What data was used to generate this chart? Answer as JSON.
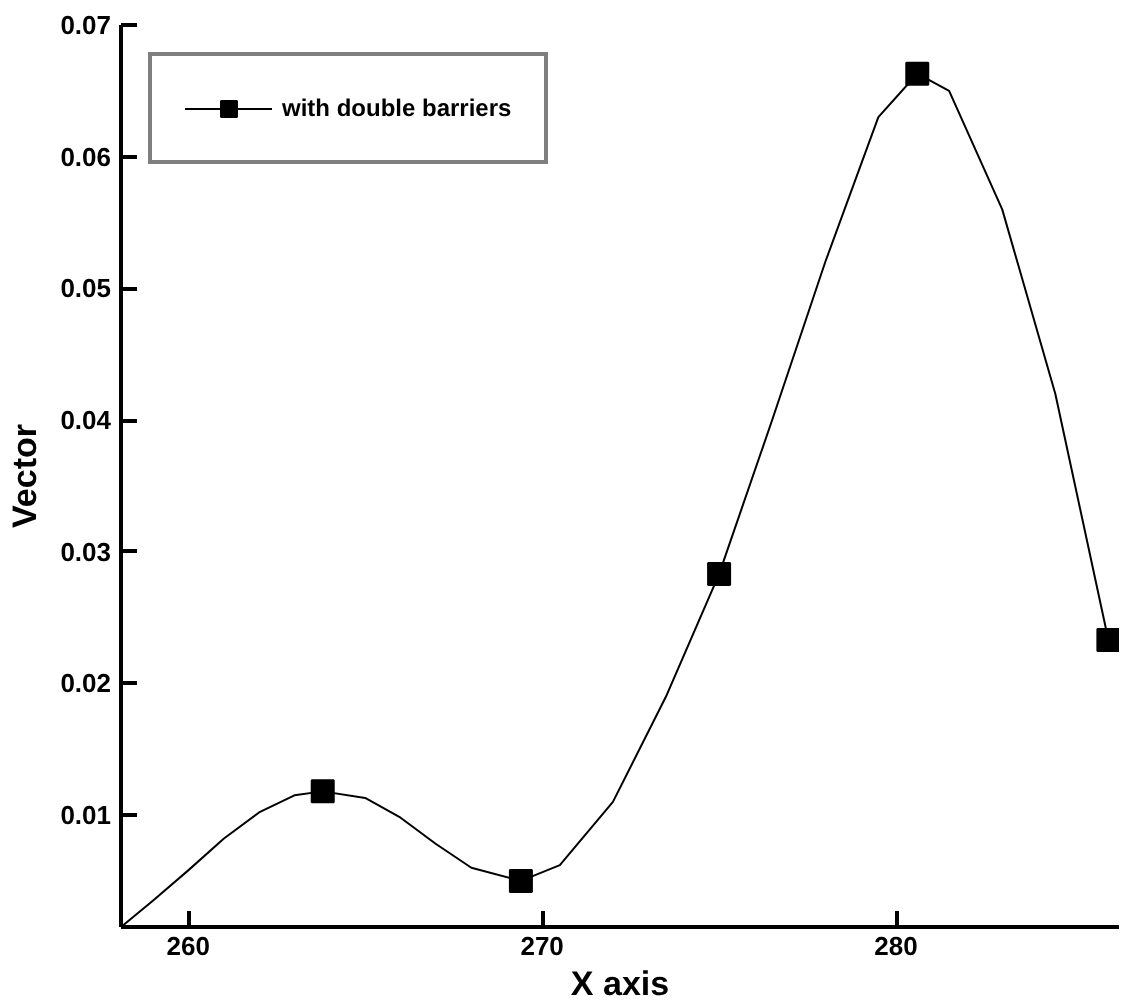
{
  "chart_data": {
    "type": "line",
    "xlabel": "X axis",
    "ylabel": "Vector",
    "xlim": [
      258.1,
      286.3
    ],
    "ylim": [
      0.0015,
      0.07
    ],
    "xticks": [
      260,
      270,
      280
    ],
    "yticks": [
      0.01,
      0.02,
      0.03,
      0.04,
      0.05,
      0.06,
      0.07
    ],
    "grid": false,
    "legend": "top left",
    "series": [
      {
        "type": "line",
        "color": "#000000",
        "x": [
          258.1,
          259,
          260,
          261,
          262,
          263,
          263.8,
          265,
          266,
          267,
          268,
          269.4,
          270.5,
          272,
          273.5,
          275,
          276.5,
          278,
          279.5,
          280.6,
          281.5,
          283,
          284.5,
          286
        ],
        "values": [
          0.0015,
          0.0035,
          0.0058,
          0.0082,
          0.0102,
          0.0115,
          0.0118,
          0.0113,
          0.0098,
          0.0078,
          0.006,
          0.005,
          0.0062,
          0.011,
          0.019,
          0.0283,
          0.04,
          0.052,
          0.063,
          0.0663,
          0.065,
          0.056,
          0.042,
          0.0233
        ]
      },
      {
        "type": "scatter",
        "name": "with double barriers",
        "color": "#000000",
        "marker": "square",
        "x": [
          263.8,
          269.4,
          275.0,
          280.6,
          286.0
        ],
        "values": [
          0.0118,
          0.005,
          0.0283,
          0.0663,
          0.0233
        ]
      }
    ]
  }
}
